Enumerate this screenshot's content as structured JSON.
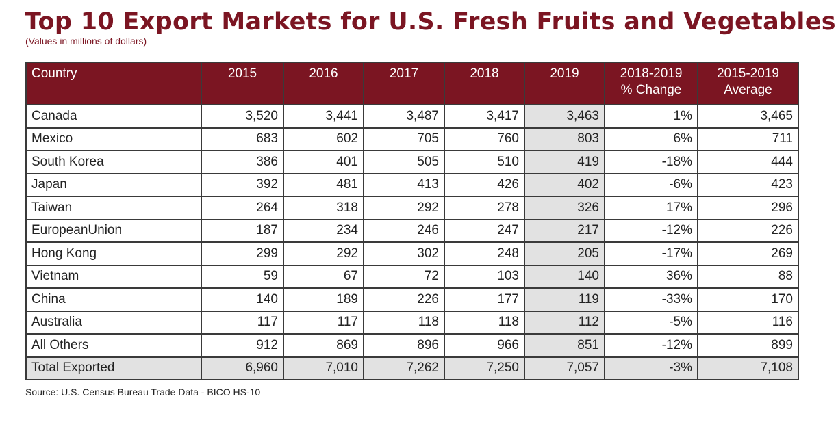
{
  "title": "Top 10 Export Markets for U.S. Fresh Fruits and Vegetables",
  "subtitle": "(Values in millions of dollars)",
  "source": "Source: U.S. Census Bureau Trade Data - BICO HS-10",
  "colors": {
    "header_bg": "#7b1522",
    "title": "#7b1522",
    "highlight": "#e2e2e2"
  },
  "chart_data": {
    "type": "table",
    "columns": [
      "Country",
      "2015",
      "2016",
      "2017",
      "2018",
      "2019",
      "2018-2019\n% Change",
      "2015-2019\nAverage"
    ],
    "rows": [
      [
        "Canada",
        "3,520",
        "3,441",
        "3,487",
        "3,417",
        "3,463",
        "1%",
        "3,465"
      ],
      [
        "Mexico",
        "683",
        "602",
        "705",
        "760",
        "803",
        "6%",
        "711"
      ],
      [
        "South Korea",
        "386",
        "401",
        "505",
        "510",
        "419",
        "-18%",
        "444"
      ],
      [
        "Japan",
        "392",
        "481",
        "413",
        "426",
        "402",
        "-6%",
        "423"
      ],
      [
        "Taiwan",
        "264",
        "318",
        "292",
        "278",
        "326",
        "17%",
        "296"
      ],
      [
        "EuropeanUnion",
        "187",
        "234",
        "246",
        "247",
        "217",
        "-12%",
        "226"
      ],
      [
        "Hong Kong",
        "299",
        "292",
        "302",
        "248",
        "205",
        "-17%",
        "269"
      ],
      [
        "Vietnam",
        "59",
        "67",
        "72",
        "103",
        "140",
        "36%",
        "88"
      ],
      [
        "China",
        "140",
        "189",
        "226",
        "177",
        "119",
        "-33%",
        "170"
      ],
      [
        "Australia",
        "117",
        "117",
        "118",
        "118",
        "112",
        "-5%",
        "116"
      ],
      [
        "All Others",
        "912",
        "869",
        "896",
        "966",
        "851",
        "-12%",
        "899"
      ],
      [
        "Total Exported",
        "6,960",
        "7,010",
        "7,262",
        "7,250",
        "7,057",
        "-3%",
        "7,108"
      ]
    ],
    "highlighted_column": "2019",
    "highlighted_row": "Total Exported"
  }
}
